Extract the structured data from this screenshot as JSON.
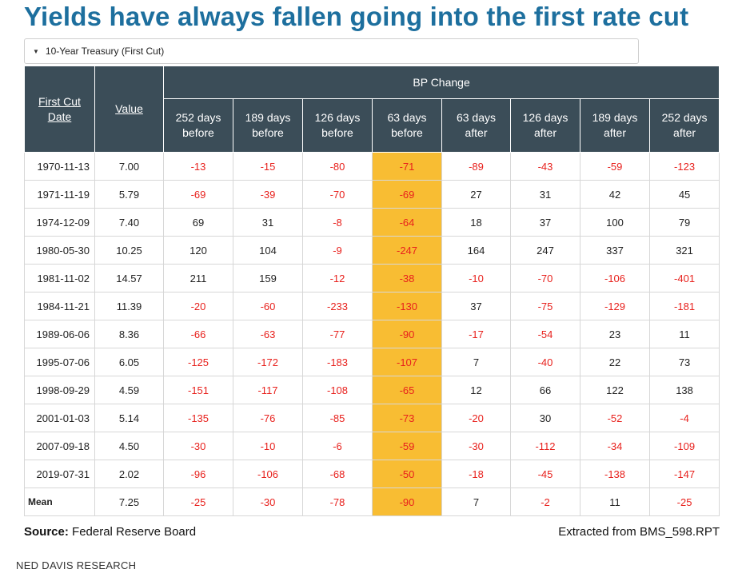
{
  "title": "Yields have always fallen going into the first rate cut",
  "dropdown": {
    "label": "10-Year Treasury (First Cut)",
    "icon": "caret-down-icon"
  },
  "table": {
    "col_first_cut_line1": "First Cut",
    "col_first_cut_line2": "Date",
    "col_value": "Value",
    "group_header": "BP Change",
    "sub_headers": [
      {
        "line1": "252 days",
        "line2": "before"
      },
      {
        "line1": "189 days",
        "line2": "before"
      },
      {
        "line1": "126 days",
        "line2": "before"
      },
      {
        "line1": "63 days",
        "line2": "before"
      },
      {
        "line1": "63 days",
        "line2": "after"
      },
      {
        "line1": "126 days",
        "line2": "after"
      },
      {
        "line1": "189 days",
        "line2": "after"
      },
      {
        "line1": "252 days",
        "line2": "after"
      }
    ],
    "highlight_column_index": 3,
    "colors": {
      "header_bg": "#3b4d58",
      "highlight": "#f8bd33",
      "negative": "#e8211d",
      "title": "#1d6f9e"
    },
    "rows": [
      {
        "date": "1970-11-13",
        "value": "7.00",
        "changes": [
          "-13",
          "-15",
          "-80",
          "-71",
          "-89",
          "-43",
          "-59",
          "-123"
        ]
      },
      {
        "date": "1971-11-19",
        "value": "5.79",
        "changes": [
          "-69",
          "-39",
          "-70",
          "-69",
          "27",
          "31",
          "42",
          "45"
        ]
      },
      {
        "date": "1974-12-09",
        "value": "7.40",
        "changes": [
          "69",
          "31",
          "-8",
          "-64",
          "18",
          "37",
          "100",
          "79"
        ]
      },
      {
        "date": "1980-05-30",
        "value": "10.25",
        "changes": [
          "120",
          "104",
          "-9",
          "-247",
          "164",
          "247",
          "337",
          "321"
        ]
      },
      {
        "date": "1981-11-02",
        "value": "14.57",
        "changes": [
          "211",
          "159",
          "-12",
          "-38",
          "-10",
          "-70",
          "-106",
          "-401"
        ]
      },
      {
        "date": "1984-11-21",
        "value": "11.39",
        "changes": [
          "-20",
          "-60",
          "-233",
          "-130",
          "37",
          "-75",
          "-129",
          "-181"
        ]
      },
      {
        "date": "1989-06-06",
        "value": "8.36",
        "changes": [
          "-66",
          "-63",
          "-77",
          "-90",
          "-17",
          "-54",
          "23",
          "11"
        ]
      },
      {
        "date": "1995-07-06",
        "value": "6.05",
        "changes": [
          "-125",
          "-172",
          "-183",
          "-107",
          "7",
          "-40",
          "22",
          "73"
        ]
      },
      {
        "date": "1998-09-29",
        "value": "4.59",
        "changes": [
          "-151",
          "-117",
          "-108",
          "-65",
          "12",
          "66",
          "122",
          "138"
        ]
      },
      {
        "date": "2001-01-03",
        "value": "5.14",
        "changes": [
          "-135",
          "-76",
          "-85",
          "-73",
          "-20",
          "30",
          "-52",
          "-4"
        ]
      },
      {
        "date": "2007-09-18",
        "value": "4.50",
        "changes": [
          "-30",
          "-10",
          "-6",
          "-59",
          "-30",
          "-112",
          "-34",
          "-109"
        ]
      },
      {
        "date": "2019-07-31",
        "value": "2.02",
        "changes": [
          "-96",
          "-106",
          "-68",
          "-50",
          "-18",
          "-45",
          "-138",
          "-147"
        ]
      }
    ],
    "mean": {
      "label": "Mean",
      "value": "7.25",
      "changes": [
        "-25",
        "-30",
        "-78",
        "-90",
        "7",
        "-2",
        "11",
        "-25"
      ]
    }
  },
  "footer": {
    "source_label": "Source:",
    "source_text": "Federal Reserve Board",
    "extracted": "Extracted from BMS_598.RPT",
    "brand": "NED DAVIS RESEARCH"
  }
}
